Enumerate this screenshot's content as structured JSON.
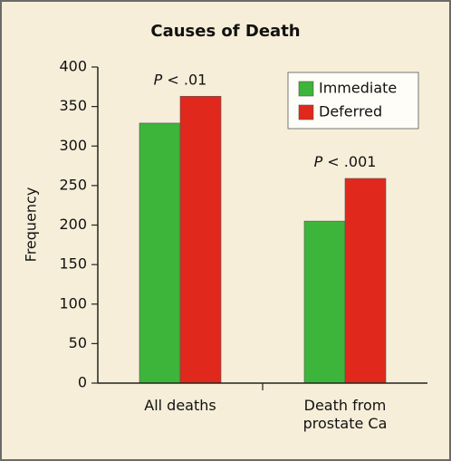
{
  "chart_data": {
    "type": "bar",
    "title": "Causes of Death",
    "y_label": "Frequency",
    "categories": [
      "All deaths",
      "Death from prostate Ca"
    ],
    "series": [
      {
        "name": "Immediate",
        "color": "#3db53a",
        "values": [
          329,
          205
        ]
      },
      {
        "name": "Deferred",
        "color": "#e0291c",
        "values": [
          363,
          259
        ]
      }
    ],
    "annotations": [
      "P < .01",
      "P < .001"
    ],
    "ylim": [
      0,
      400
    ],
    "yticks": [
      0,
      50,
      100,
      150,
      200,
      250,
      300,
      350,
      400
    ],
    "legend": "upper-right"
  }
}
